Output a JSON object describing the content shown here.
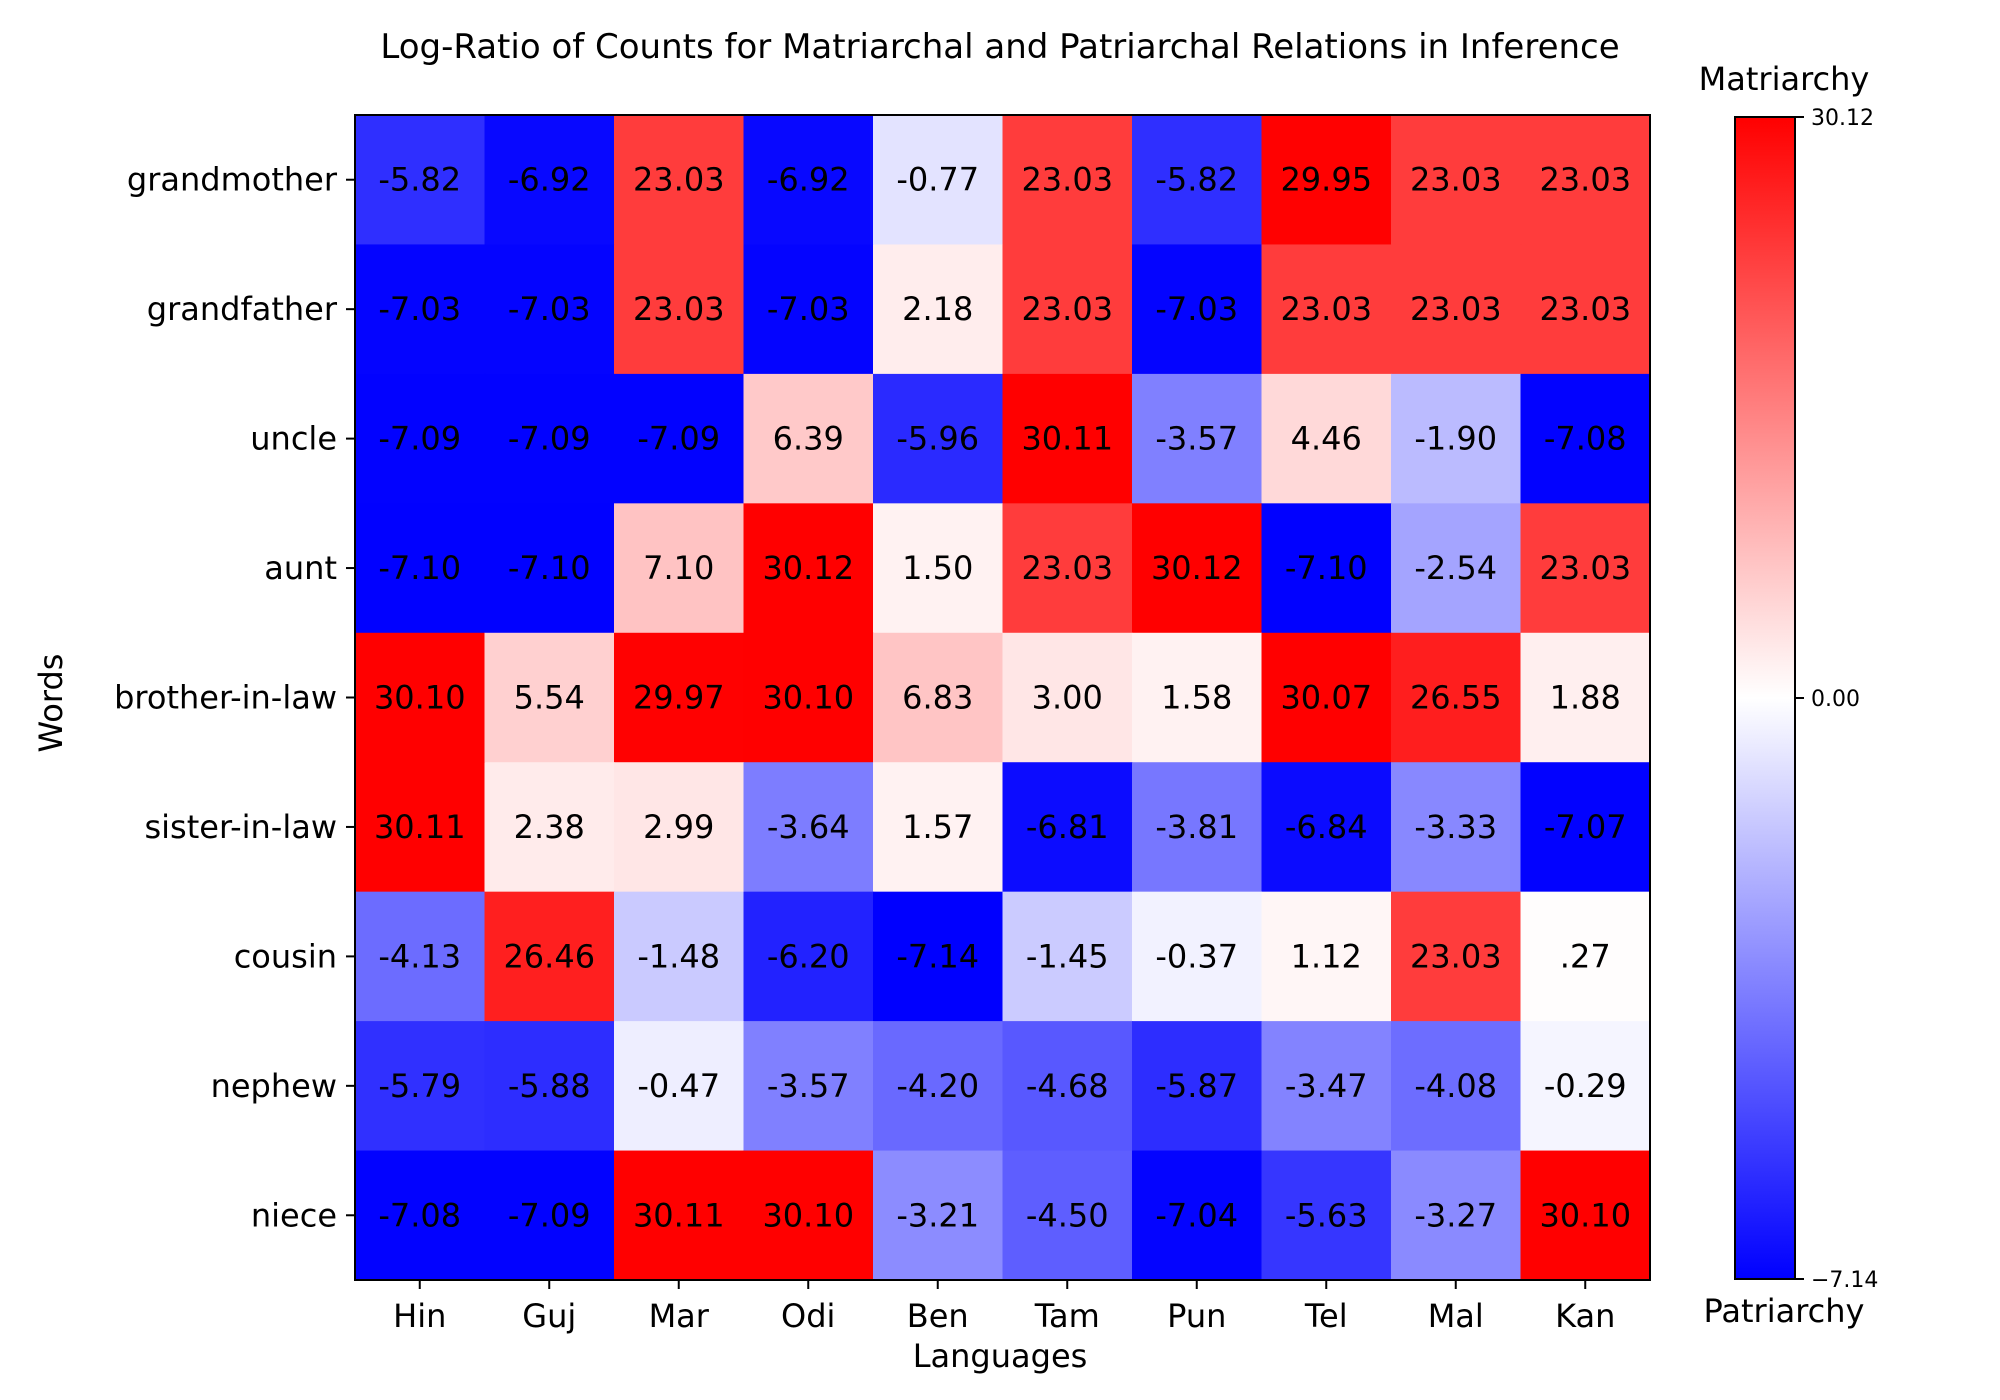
{
  "chart_data": {
    "type": "heatmap",
    "title": "Log-Ratio of Counts for Matriarchal and Patriarchal Relations in Inference",
    "xlabel": "Languages",
    "ylabel": "Words",
    "x_categories": [
      "Hin",
      "Guj",
      "Mar",
      "Odi",
      "Ben",
      "Tam",
      "Pun",
      "Tel",
      "Mal",
      "Kan"
    ],
    "y_categories": [
      "grandmother",
      "grandfather",
      "uncle",
      "aunt",
      "brother-in-law",
      "sister-in-law",
      "cousin",
      "nephew",
      "niece"
    ],
    "values": [
      [
        -5.82,
        -6.92,
        23.03,
        -6.92,
        -0.77,
        23.03,
        -5.82,
        29.95,
        23.03,
        23.03
      ],
      [
        -7.03,
        -7.03,
        23.03,
        -7.03,
        2.18,
        23.03,
        -7.03,
        23.03,
        23.03,
        23.03
      ],
      [
        -7.09,
        -7.09,
        -7.09,
        6.39,
        -5.96,
        30.11,
        -3.57,
        4.46,
        -1.9,
        -7.08
      ],
      [
        -7.1,
        -7.1,
        7.1,
        30.12,
        1.5,
        23.03,
        30.12,
        -7.1,
        -2.54,
        23.03
      ],
      [
        30.1,
        5.54,
        29.97,
        30.1,
        6.83,
        3.0,
        1.58,
        30.07,
        26.55,
        1.88
      ],
      [
        30.11,
        2.38,
        2.99,
        -3.64,
        1.57,
        -6.81,
        -3.81,
        -6.84,
        -3.33,
        -7.07
      ],
      [
        -4.13,
        26.46,
        -1.48,
        -6.2,
        -7.14,
        -1.45,
        -0.37,
        1.12,
        23.03,
        0.27
      ],
      [
        -5.79,
        -5.88,
        -0.47,
        -3.57,
        -4.2,
        -4.68,
        -5.87,
        -3.47,
        -4.08,
        -0.29
      ],
      [
        -7.08,
        -7.09,
        30.11,
        30.1,
        -3.21,
        -4.5,
        -7.04,
        -5.63,
        -3.27,
        30.1
      ]
    ],
    "value_labels": [
      [
        "-5.82",
        "-6.92",
        "23.03",
        "-6.92",
        "-0.77",
        "23.03",
        "-5.82",
        "29.95",
        "23.03",
        "23.03"
      ],
      [
        "-7.03",
        "-7.03",
        "23.03",
        "-7.03",
        "2.18",
        "23.03",
        "-7.03",
        "23.03",
        "23.03",
        "23.03"
      ],
      [
        "-7.09",
        "-7.09",
        "-7.09",
        "6.39",
        "-5.96",
        "30.11",
        "-3.57",
        "4.46",
        "-1.90",
        "-7.08"
      ],
      [
        "-7.10",
        "-7.10",
        "7.10",
        "30.12",
        "1.50",
        "23.03",
        "30.12",
        "-7.10",
        "-2.54",
        "23.03"
      ],
      [
        "30.10",
        "5.54",
        "29.97",
        "30.10",
        "6.83",
        "3.00",
        "1.58",
        "30.07",
        "26.55",
        "1.88"
      ],
      [
        "30.11",
        "2.38",
        "2.99",
        "-3.64",
        "1.57",
        "-6.81",
        "-3.81",
        "-6.84",
        "-3.33",
        "-7.07"
      ],
      [
        "-4.13",
        "26.46",
        "-1.48",
        "-6.20",
        "-7.14",
        "-1.45",
        "-0.37",
        "1.12",
        "23.03",
        ".27"
      ],
      [
        "-5.79",
        "-5.88",
        "-0.47",
        "-3.57",
        "-4.20",
        "-4.68",
        "-5.87",
        "-3.47",
        "-4.08",
        "-0.29"
      ],
      [
        "-7.08",
        "-7.09",
        "30.11",
        "30.10",
        "-3.21",
        "-4.50",
        "-7.04",
        "-5.63",
        "-3.27",
        "30.10"
      ]
    ],
    "colorbar": {
      "min": -7.14,
      "center": 0.0,
      "max": 30.12,
      "tick_labels": [
        "30.12",
        "0.00",
        "−7.14"
      ],
      "top_label": "Matriarchy",
      "bottom_label": "Patriarchy",
      "colors": {
        "low": "#0000ff",
        "mid": "#ffffff",
        "high": "#ff0000"
      }
    },
    "grid": false
  }
}
